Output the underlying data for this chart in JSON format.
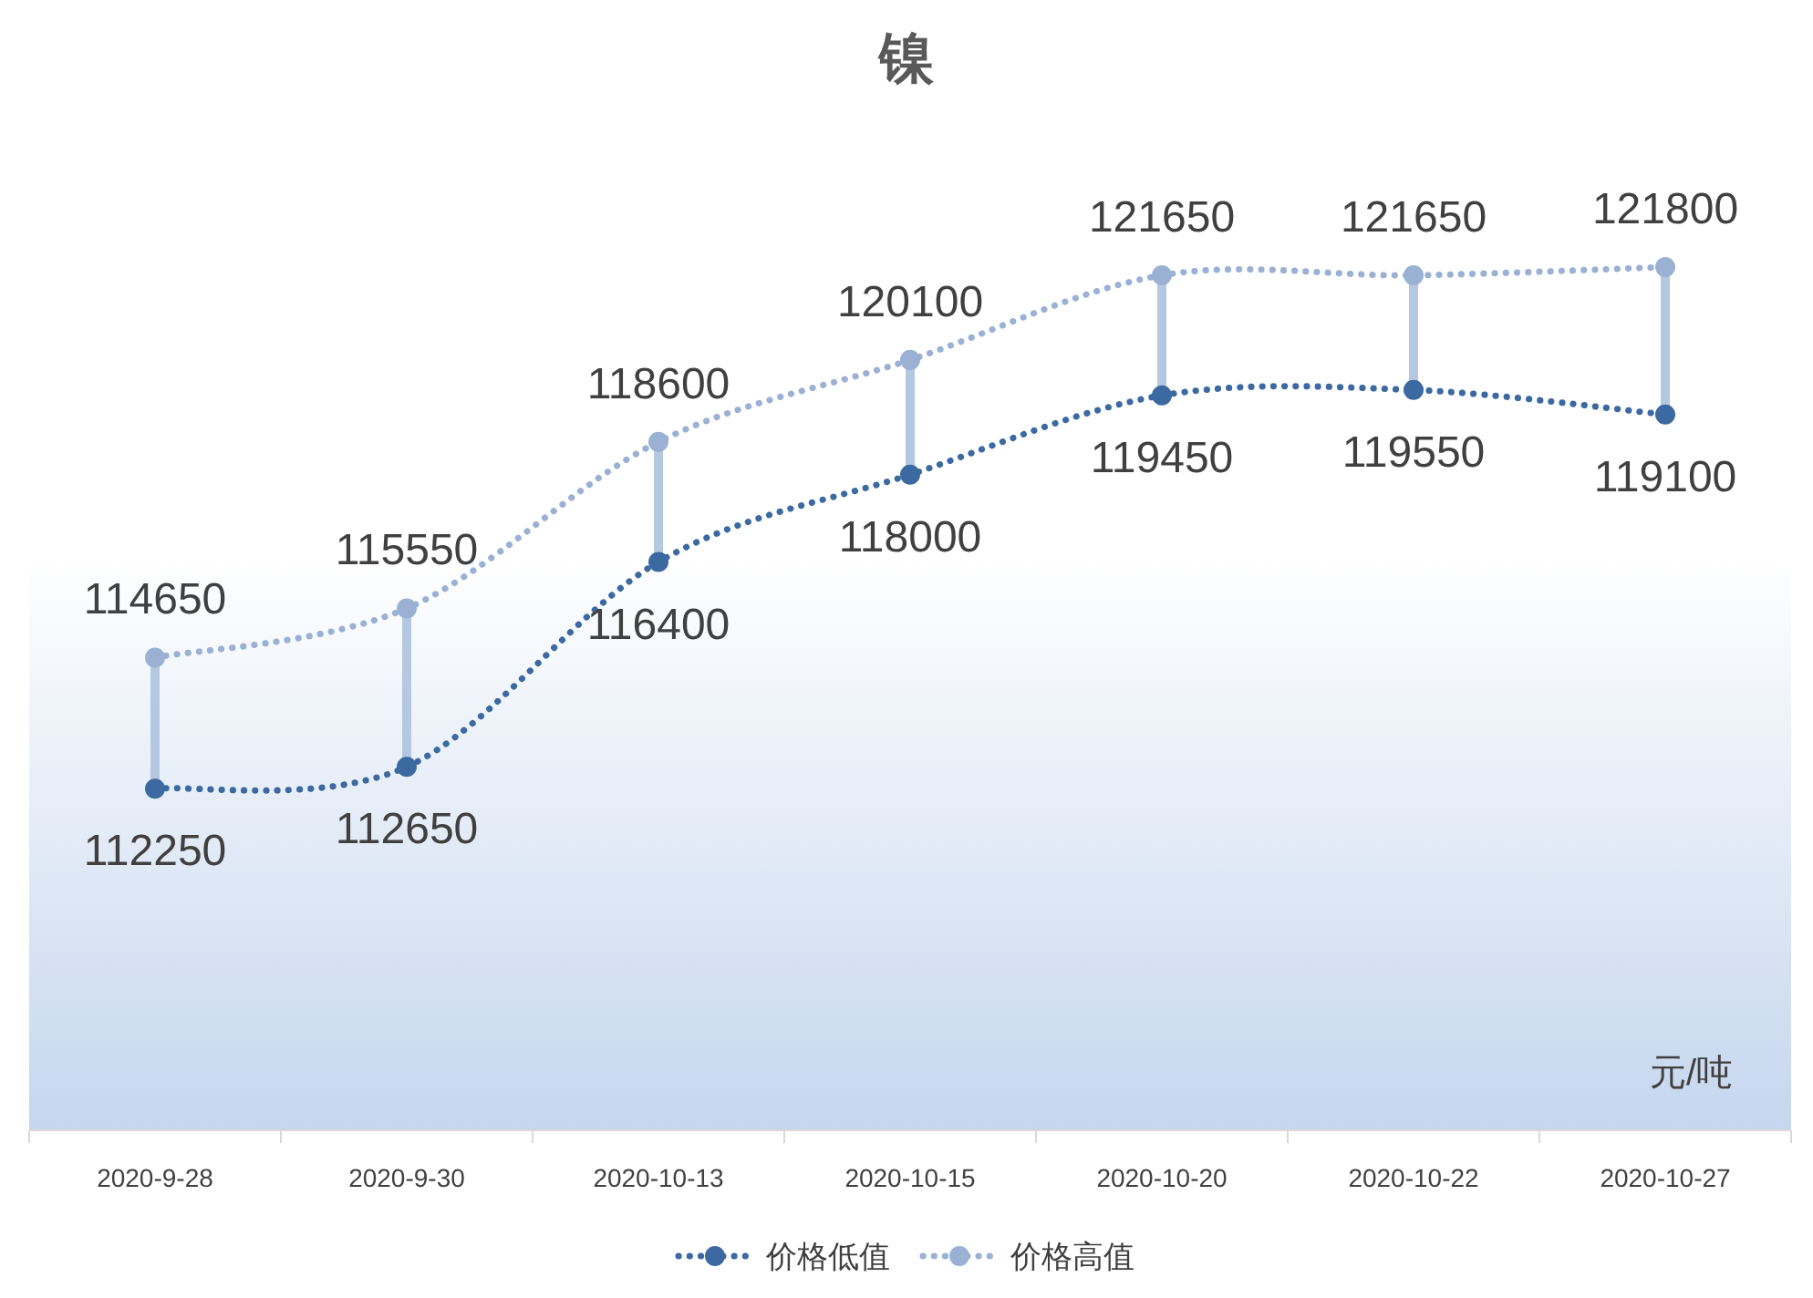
{
  "chart_data": {
    "type": "line",
    "title": "镍",
    "categories": [
      "2020-9-28",
      "2020-9-30",
      "2020-10-13",
      "2020-10-15",
      "2020-10-20",
      "2020-10-22",
      "2020-10-27"
    ],
    "series": [
      {
        "name": "价格低值",
        "color": "#3c6aa0",
        "values": [
          112250,
          112650,
          116400,
          118000,
          119450,
          119550,
          119100
        ]
      },
      {
        "name": "价格高值",
        "color": "#9bb1d4",
        "values": [
          114650,
          115550,
          118600,
          120100,
          121650,
          121650,
          121800
        ]
      }
    ],
    "data_labels": true,
    "marker": "circle",
    "line_style": "dotted",
    "legend": "bottom",
    "annotations": [
      "元/吨"
    ]
  }
}
